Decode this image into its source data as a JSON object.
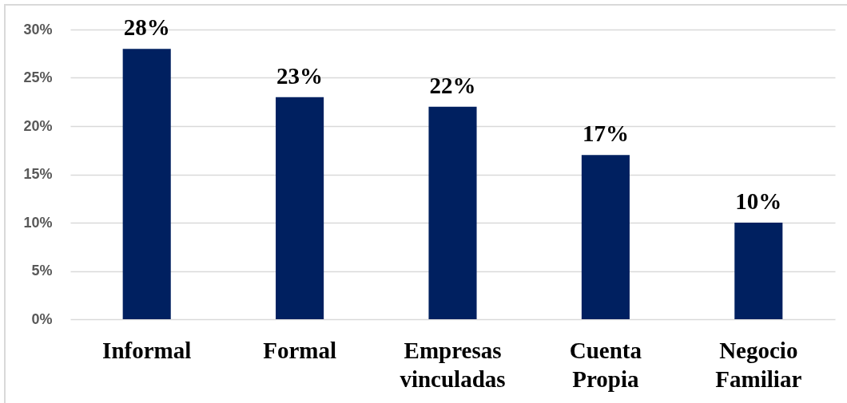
{
  "chart_data": {
    "type": "bar",
    "categories": [
      "Informal",
      "Formal",
      "Empresas vinculadas",
      "Cuenta Propia",
      "Negocio Familiar"
    ],
    "values": [
      28,
      23,
      22,
      17,
      10
    ],
    "value_labels": [
      "28%",
      "23%",
      "22%",
      "17%",
      "10%"
    ],
    "color": "#002060",
    "ylim": [
      0,
      30
    ],
    "yticks": [
      {
        "value": 0,
        "label": "0%"
      },
      {
        "value": 5,
        "label": "5%"
      },
      {
        "value": 10,
        "label": "10%"
      },
      {
        "value": 15,
        "label": "15%"
      },
      {
        "value": 20,
        "label": "20%"
      },
      {
        "value": 25,
        "label": "25%"
      },
      {
        "value": 30,
        "label": "30%"
      }
    ],
    "grid": "y"
  }
}
